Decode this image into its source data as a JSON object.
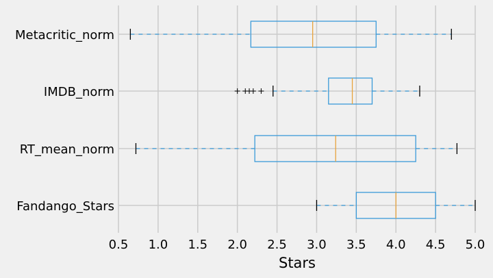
{
  "chart_data": {
    "type": "boxplot",
    "orientation": "horizontal",
    "xlabel": "Stars",
    "ylabel": "",
    "title": "",
    "xlim": [
      0.5,
      5.0
    ],
    "xticks": [
      "0.5",
      "1.0",
      "1.5",
      "2.0",
      "2.5",
      "3.0",
      "3.5",
      "4.0",
      "4.5",
      "5.0"
    ],
    "grid": true,
    "colors": {
      "box": "#3a9ad9",
      "median": "#e8a33c",
      "cap": "#000000",
      "grid": "#cbcbcb",
      "background": "#f0f0f0"
    },
    "series": [
      {
        "name": "Metacritic_norm",
        "whislo": 0.65,
        "q1": 2.17,
        "median": 2.95,
        "q3": 3.75,
        "whishi": 4.7,
        "fliers": []
      },
      {
        "name": "IMDB_norm",
        "whislo": 2.45,
        "q1": 3.15,
        "median": 3.45,
        "q3": 3.7,
        "whishi": 4.3,
        "fliers": [
          2.0,
          2.1,
          2.15,
          2.2,
          2.3
        ]
      },
      {
        "name": "RT_mean_norm",
        "whislo": 0.72,
        "q1": 2.22,
        "median": 3.24,
        "q3": 4.25,
        "whishi": 4.77,
        "fliers": []
      },
      {
        "name": "Fandango_Stars",
        "whislo": 3.0,
        "q1": 3.5,
        "median": 4.0,
        "q3": 4.5,
        "whishi": 5.0,
        "fliers": []
      }
    ]
  }
}
